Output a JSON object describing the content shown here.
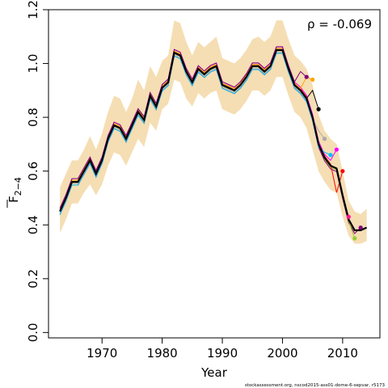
{
  "chart_data": {
    "type": "line",
    "xlabel": "Year",
    "ylabel": "F",
    "ylabel_sub": "2−4",
    "annotation": "ρ = -0.069",
    "footer": "stockassessment.org, nscod2015-ass01-dome-6-sepvar, r5173",
    "xlim": [
      1961.1,
      2016.2
    ],
    "ylim": [
      -0.02,
      1.2
    ],
    "xticks": [
      "1970",
      "1980",
      "1990",
      "2000",
      "2010"
    ],
    "yticks": [
      "0.0",
      "0.2",
      "0.4",
      "0.6",
      "0.8",
      "1.0",
      "1.2"
    ],
    "grid": false,
    "colors": {
      "band": "#f5deb3",
      "main": "#000000",
      "peels": [
        "#ff0000",
        "#ff00ff",
        "#00bfff",
        "#aaaaaa",
        "#ffa500",
        "#9acd32",
        "#800080",
        "#ff1493",
        "#ffc0cb"
      ]
    },
    "series": [
      {
        "x": [
          1963,
          1964,
          1965,
          1966,
          1967,
          1968,
          1969,
          1970,
          1971,
          1972,
          1973,
          1974,
          1975,
          1976,
          1977,
          1978,
          1979,
          1980,
          1981,
          1982,
          1983,
          1984,
          1985,
          1986,
          1987,
          1988,
          1989,
          1990,
          1991,
          1992,
          1993,
          1994,
          1995,
          1996,
          1997,
          1998,
          1999,
          2000,
          2001,
          2002,
          2003,
          2004,
          2005,
          2006,
          2007,
          2008,
          2009,
          2010,
          2011,
          2012,
          2013,
          2014
        ],
        "y": [
          0.45,
          0.5,
          0.56,
          0.56,
          0.6,
          0.64,
          0.59,
          0.64,
          0.72,
          0.77,
          0.76,
          0.72,
          0.77,
          0.82,
          0.79,
          0.88,
          0.84,
          0.91,
          0.93,
          1.04,
          1.03,
          0.97,
          0.93,
          0.98,
          0.96,
          0.98,
          0.99,
          0.92,
          0.91,
          0.9,
          0.92,
          0.95,
          0.99,
          0.99,
          0.97,
          0.99,
          1.05,
          1.05,
          0.98,
          0.92,
          0.9,
          0.87,
          0.8,
          0.7,
          0.65,
          0.62,
          0.61,
          0.51,
          0.42,
          0.38,
          0.38,
          0.39
        ]
      }
    ],
    "band": {
      "lower": [
        0.37,
        0.42,
        0.48,
        0.48,
        0.52,
        0.55,
        0.51,
        0.55,
        0.62,
        0.67,
        0.66,
        0.62,
        0.67,
        0.72,
        0.69,
        0.78,
        0.75,
        0.83,
        0.85,
        0.94,
        0.93,
        0.87,
        0.84,
        0.89,
        0.87,
        0.89,
        0.9,
        0.83,
        0.82,
        0.81,
        0.83,
        0.86,
        0.9,
        0.9,
        0.88,
        0.9,
        0.95,
        0.95,
        0.88,
        0.82,
        0.8,
        0.76,
        0.68,
        0.6,
        0.56,
        0.53,
        0.52,
        0.43,
        0.36,
        0.33,
        0.33,
        0.34
      ],
      "upper": [
        0.54,
        0.59,
        0.64,
        0.64,
        0.68,
        0.73,
        0.68,
        0.74,
        0.82,
        0.88,
        0.87,
        0.82,
        0.87,
        0.94,
        0.9,
        0.99,
        0.95,
        1.01,
        1.03,
        1.16,
        1.15,
        1.08,
        1.03,
        1.08,
        1.06,
        1.08,
        1.1,
        1.02,
        1.01,
        1.0,
        1.02,
        1.05,
        1.09,
        1.1,
        1.08,
        1.1,
        1.16,
        1.16,
        1.09,
        1.03,
        1.01,
        0.98,
        0.92,
        0.81,
        0.75,
        0.72,
        0.7,
        0.6,
        0.49,
        0.45,
        0.44,
        0.46
      ]
    },
    "peels": [
      {
        "end": 2013,
        "color": "#800080",
        "y": [
          0.39
        ]
      },
      {
        "end": 2012,
        "color": "#9acd32",
        "y": [
          0.35
        ]
      },
      {
        "end": 2011,
        "color": "#ff1493",
        "y": [
          0.43
        ]
      },
      {
        "end": 2010,
        "color": "#ff0000",
        "y": [
          0.52,
          0.6
        ]
      },
      {
        "end": 2009,
        "color": "#ff00ff",
        "y": [
          0.64,
          0.68
        ]
      },
      {
        "end": 2008,
        "color": "#00bfff",
        "y": [
          0.67,
          0.66
        ]
      },
      {
        "end": 2007,
        "color": "#aaaaaa",
        "y": [
          0.75,
          0.72
        ]
      },
      {
        "end": 2006,
        "color": "#000000",
        "y": [
          0.9,
          0.83
        ]
      },
      {
        "end": 2005,
        "color": "#ffa500",
        "y": [
          0.95,
          0.94
        ]
      },
      {
        "end": 2004,
        "color": "#800080",
        "y": [
          0.97,
          0.95
        ]
      }
    ]
  }
}
